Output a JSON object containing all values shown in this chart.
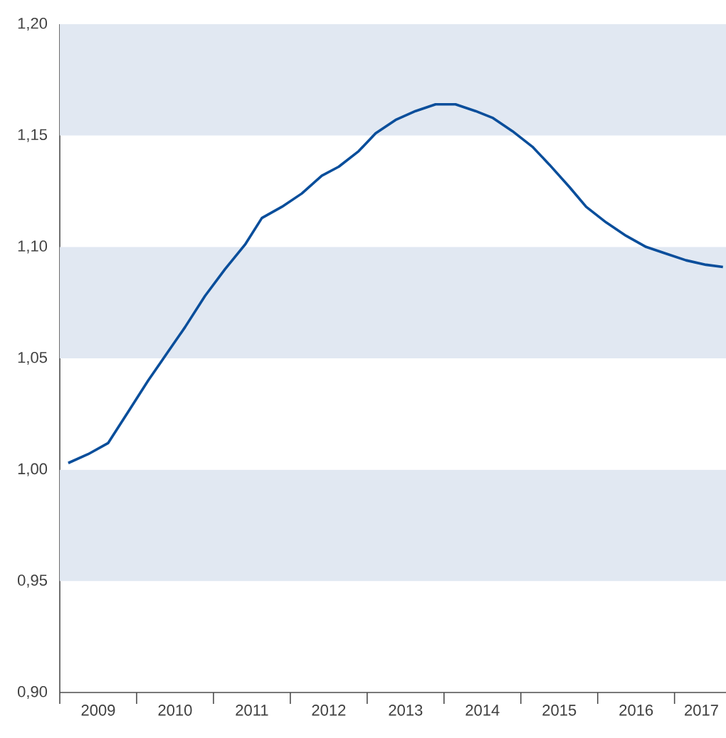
{
  "chart_data": {
    "type": "line",
    "x": [
      2009.11,
      2009.37,
      2009.63,
      2009.89,
      2010.15,
      2010.41,
      2010.63,
      2010.89,
      2011.15,
      2011.41,
      2011.63,
      2011.89,
      2012.15,
      2012.41,
      2012.63,
      2012.89,
      2013.11,
      2013.37,
      2013.63,
      2013.89,
      2014.15,
      2014.41,
      2014.63,
      2014.89,
      2015.15,
      2015.37,
      2015.63,
      2015.85,
      2016.11,
      2016.37,
      2016.63,
      2016.89,
      2017.15,
      2017.41,
      2017.63
    ],
    "series": [
      {
        "color": "#0a4e9b",
        "values": [
          1.003,
          1.007,
          1.012,
          1.026,
          1.04,
          1.053,
          1.064,
          1.078,
          1.09,
          1.101,
          1.113,
          1.118,
          1.124,
          1.132,
          1.136,
          1.143,
          1.151,
          1.157,
          1.161,
          1.164,
          1.164,
          1.161,
          1.158,
          1.152,
          1.145,
          1.137,
          1.127,
          1.118,
          1.111,
          1.105,
          1.1,
          1.097,
          1.094,
          1.092,
          1.091
        ]
      }
    ],
    "xlim": [
      2009,
      2017.67
    ],
    "xticks": [
      {
        "value": 2009,
        "label": null
      },
      {
        "value": 2009.5,
        "label": "2009"
      },
      {
        "value": 2010,
        "label": null
      },
      {
        "value": 2010.5,
        "label": "2010"
      },
      {
        "value": 2011,
        "label": null
      },
      {
        "value": 2011.5,
        "label": "2011"
      },
      {
        "value": 2012,
        "label": null
      },
      {
        "value": 2012.5,
        "label": "2012"
      },
      {
        "value": 2013,
        "label": null
      },
      {
        "value": 2013.5,
        "label": "2013"
      },
      {
        "value": 2014,
        "label": null
      },
      {
        "value": 2014.5,
        "label": "2014"
      },
      {
        "value": 2015,
        "label": null
      },
      {
        "value": 2015.5,
        "label": "2015"
      },
      {
        "value": 2016,
        "label": null
      },
      {
        "value": 2016.5,
        "label": "2016"
      },
      {
        "value": 2017,
        "label": null
      },
      {
        "value": 2017.35,
        "label": "2017"
      }
    ],
    "ylim": [
      0.9,
      1.2
    ],
    "yticks": [
      {
        "value": 0.9,
        "label": "0,90"
      },
      {
        "value": 0.95,
        "label": "0,95"
      },
      {
        "value": 1.0,
        "label": "1,00"
      },
      {
        "value": 1.05,
        "label": "1,05"
      },
      {
        "value": 1.1,
        "label": "1,10"
      },
      {
        "value": 1.15,
        "label": "1,15"
      },
      {
        "value": 1.2,
        "label": "1,20"
      }
    ],
    "bands": [
      {
        "axis": "y",
        "from": 0.95,
        "to": 1.0,
        "color": "#e1e8f2"
      },
      {
        "axis": "y",
        "from": 1.05,
        "to": 1.1,
        "color": "#e1e8f2"
      },
      {
        "axis": "y",
        "from": 1.15,
        "to": 1.2,
        "color": "#e1e8f2"
      }
    ],
    "grid": false,
    "marker": "none",
    "line_style": "solid"
  }
}
